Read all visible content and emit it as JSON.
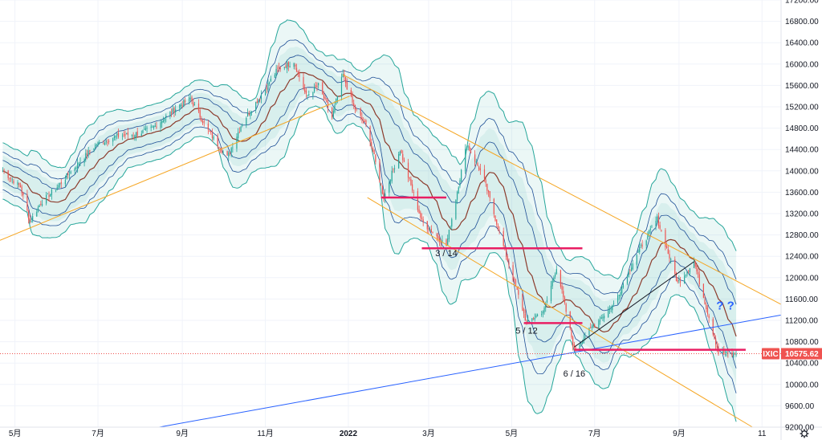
{
  "chart_data": {
    "type": "candlestick",
    "symbol": "IXIC",
    "last_price": "10575.62",
    "y_ticks": [
      "17200.00",
      "16800.00",
      "16400.00",
      "16000.00",
      "15600.00",
      "15200.00",
      "14800.00",
      "14400.00",
      "14000.00",
      "13600.00",
      "13200.00",
      "12800.00",
      "12400.00",
      "12000.00",
      "11600.00",
      "11200.00",
      "10800.00",
      "10400.00",
      "10000.00",
      "9600.00",
      "9200.00"
    ],
    "x_ticks": [
      {
        "label": "5月",
        "month": "2021-05"
      },
      {
        "label": "7月",
        "month": "2021-07"
      },
      {
        "label": "9月",
        "month": "2021-09"
      },
      {
        "label": "11月",
        "month": "2021-11"
      },
      {
        "label": "2022",
        "month": "2022-01",
        "bold": true
      },
      {
        "label": "3月",
        "month": "2022-03"
      },
      {
        "label": "5月",
        "month": "2022-05"
      },
      {
        "label": "7月",
        "month": "2022-07"
      },
      {
        "label": "9月",
        "month": "2022-09"
      },
      {
        "label": "11",
        "month": "2022-11"
      }
    ],
    "annotations": [
      {
        "text": "3 / 14",
        "date": "2022-03-14",
        "price": 12400
      },
      {
        "text": "5 / 12",
        "date": "2022-05-12",
        "price": 10950
      },
      {
        "text": "6 / 16",
        "date": "2022-06-16",
        "price": 10150
      },
      {
        "text": "? ?",
        "date": "2022-10-05",
        "price": 11400
      }
    ],
    "price_path": [
      [
        "2021-04-22",
        14000
      ],
      [
        "2021-05-05",
        13700
      ],
      [
        "2021-05-12",
        13050
      ],
      [
        "2021-05-20",
        13400
      ],
      [
        "2021-06-01",
        13700
      ],
      [
        "2021-06-15",
        14100
      ],
      [
        "2021-06-30",
        14500
      ],
      [
        "2021-07-15",
        14650
      ],
      [
        "2021-07-31",
        14700
      ],
      [
        "2021-08-10",
        14800
      ],
      [
        "2021-08-31",
        15250
      ],
      [
        "2021-09-07",
        15350
      ],
      [
        "2021-09-20",
        14750
      ],
      [
        "2021-10-04",
        14250
      ],
      [
        "2021-10-15",
        14900
      ],
      [
        "2021-10-31",
        15500
      ],
      [
        "2021-11-10",
        15900
      ],
      [
        "2021-11-22",
        16050
      ],
      [
        "2021-12-01",
        15400
      ],
      [
        "2021-12-10",
        15600
      ],
      [
        "2021-12-20",
        15000
      ],
      [
        "2021-12-28",
        15800
      ],
      [
        "2022-01-05",
        15200
      ],
      [
        "2022-01-15",
        14800
      ],
      [
        "2022-01-27",
        13500
      ],
      [
        "2022-02-08",
        14400
      ],
      [
        "2022-02-24",
        13050
      ],
      [
        "2022-03-14",
        12600
      ],
      [
        "2022-03-29",
        14500
      ],
      [
        "2022-04-10",
        13900
      ],
      [
        "2022-04-26",
        12500
      ],
      [
        "2022-05-12",
        11150
      ],
      [
        "2022-05-25",
        11400
      ],
      [
        "2022-06-03",
        12200
      ],
      [
        "2022-06-16",
        10650
      ],
      [
        "2022-06-30",
        11100
      ],
      [
        "2022-07-15",
        11500
      ],
      [
        "2022-07-31",
        12400
      ],
      [
        "2022-08-16",
        13100
      ],
      [
        "2022-08-31",
        11900
      ],
      [
        "2022-09-12",
        12300
      ],
      [
        "2022-09-30",
        10600
      ],
      [
        "2022-10-10",
        10550
      ],
      [
        "2022-10-13",
        10575.62
      ]
    ],
    "bands": {
      "mid_offsets": [
        0
      ],
      "inner_widths": [
        180,
        380,
        620
      ],
      "outer_width": 1000
    },
    "lines": [
      {
        "name": "orange-upper-trendline",
        "color": "#f5a623",
        "p1": [
          "2021-12-28",
          15800
        ],
        "p2": [
          "2022-11-15",
          11500
        ]
      },
      {
        "name": "orange-lower-trendline",
        "color": "#f5a623",
        "p1": [
          "2022-01-15",
          13500
        ],
        "p2": [
          "2022-10-25",
          9200
        ]
      },
      {
        "name": "orange-support-trendline",
        "color": "#f5a623",
        "p1": [
          "2021-04-20",
          12700
        ],
        "p2": [
          "2022-01-02",
          15400
        ]
      },
      {
        "name": "blue-long-trendline",
        "color": "#2962ff",
        "p1": [
          "2021-08-15",
          9200
        ],
        "p2": [
          "2022-11-15",
          11300
        ]
      },
      {
        "name": "black-rise-line",
        "color": "#131722",
        "p1": [
          "2022-06-16",
          10700
        ],
        "p2": [
          "2022-09-12",
          12300
        ]
      }
    ],
    "h_levels": [
      {
        "name": "resistance-level-1",
        "price": 13500,
        "from": "2022-01-25",
        "to": "2022-03-14"
      },
      {
        "name": "resistance-level-2",
        "price": 12550,
        "from": "2022-02-24",
        "to": "2022-06-22"
      },
      {
        "name": "resistance-level-3",
        "price": 11150,
        "from": "2022-05-10",
        "to": "2022-06-22"
      },
      {
        "name": "support-level-4",
        "price": 10650,
        "from": "2022-06-16",
        "to": "2022-10-20"
      }
    ],
    "colors": {
      "up": "#26a69a",
      "down": "#ef5350",
      "band_outer": "#26a69a",
      "band_inner": "#1e4f96",
      "mid": "#8b3a2b",
      "fill": "#26a69a",
      "level": "#e91e63",
      "price_tag": "#ef5350"
    },
    "ylim": [
      9200,
      17200
    ],
    "xlim": [
      "2021-04-20",
      "2022-11-15"
    ]
  }
}
